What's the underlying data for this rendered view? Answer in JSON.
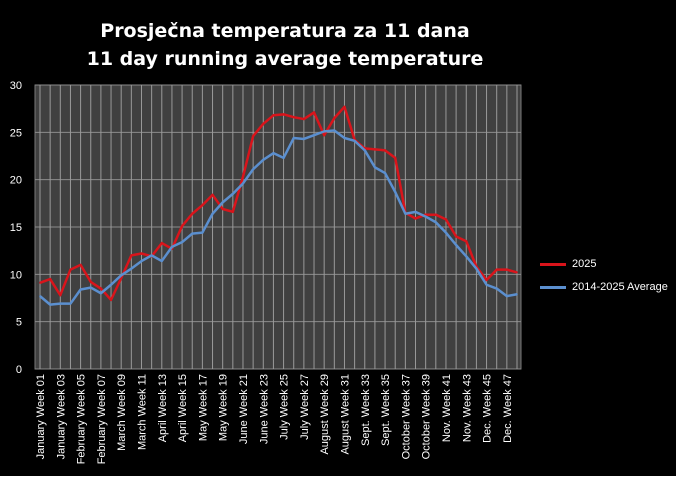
{
  "chart_data": {
    "type": "line",
    "title": "Prosječna temperatura za 11 dana",
    "subtitle": "11 day running average temperature",
    "xlabel": "",
    "ylabel": "",
    "ylim": [
      0,
      30
    ],
    "yticks": [
      0,
      5,
      10,
      15,
      20,
      25,
      30
    ],
    "grid": true,
    "legend_position": "right",
    "tick_labels": [
      "January Week 01",
      "January Week 03",
      "February Week 05",
      "February Week 07",
      "March Week 09",
      "March Week 11",
      "April Week 13",
      "April Week 15",
      "May Week 17",
      "May Week 19",
      "June Week 21",
      "June Week 23",
      "July Week 25",
      "July Week 27",
      "August Week 29",
      "August Week 31",
      "Sept. Week 33",
      "Sept. Week 35",
      "October Week 37",
      "October Week 39",
      "Nov. Week 41",
      "Nov. Week 43",
      "Dec. Week 45",
      "Dec. Week 47"
    ],
    "series": [
      {
        "name": "2025",
        "color": "#d9141b",
        "values": [
          9.1,
          9.5,
          7.8,
          10.5,
          11.0,
          9.2,
          8.5,
          7.3,
          9.6,
          12.0,
          12.2,
          11.9,
          13.3,
          12.7,
          15.1,
          16.4,
          17.3,
          18.4,
          16.9,
          16.6,
          20.3,
          24.6,
          25.9,
          26.8,
          26.9,
          26.6,
          26.4,
          27.1,
          24.7,
          26.5,
          27.7,
          24.2,
          23.3,
          23.2,
          23.1,
          22.3,
          16.5,
          15.9,
          16.3,
          16.3,
          15.8,
          14.0,
          13.5,
          10.8,
          9.4,
          10.5,
          10.5,
          10.2
        ]
      },
      {
        "name": "2014-2025 Average",
        "color": "#5b8fcf",
        "values": [
          7.7,
          6.8,
          6.9,
          6.9,
          8.4,
          8.6,
          8.0,
          8.9,
          9.9,
          10.6,
          11.4,
          12.0,
          11.4,
          12.9,
          13.4,
          14.3,
          14.4,
          16.4,
          17.6,
          18.5,
          19.6,
          21.1,
          22.1,
          22.8,
          22.3,
          24.4,
          24.3,
          24.7,
          25.1,
          25.2,
          24.4,
          24.1,
          23.1,
          21.3,
          20.7,
          18.7,
          16.4,
          16.6,
          16.1,
          15.5,
          14.4,
          13.1,
          11.9,
          10.6,
          8.9,
          8.5,
          7.7,
          7.9
        ]
      }
    ]
  }
}
